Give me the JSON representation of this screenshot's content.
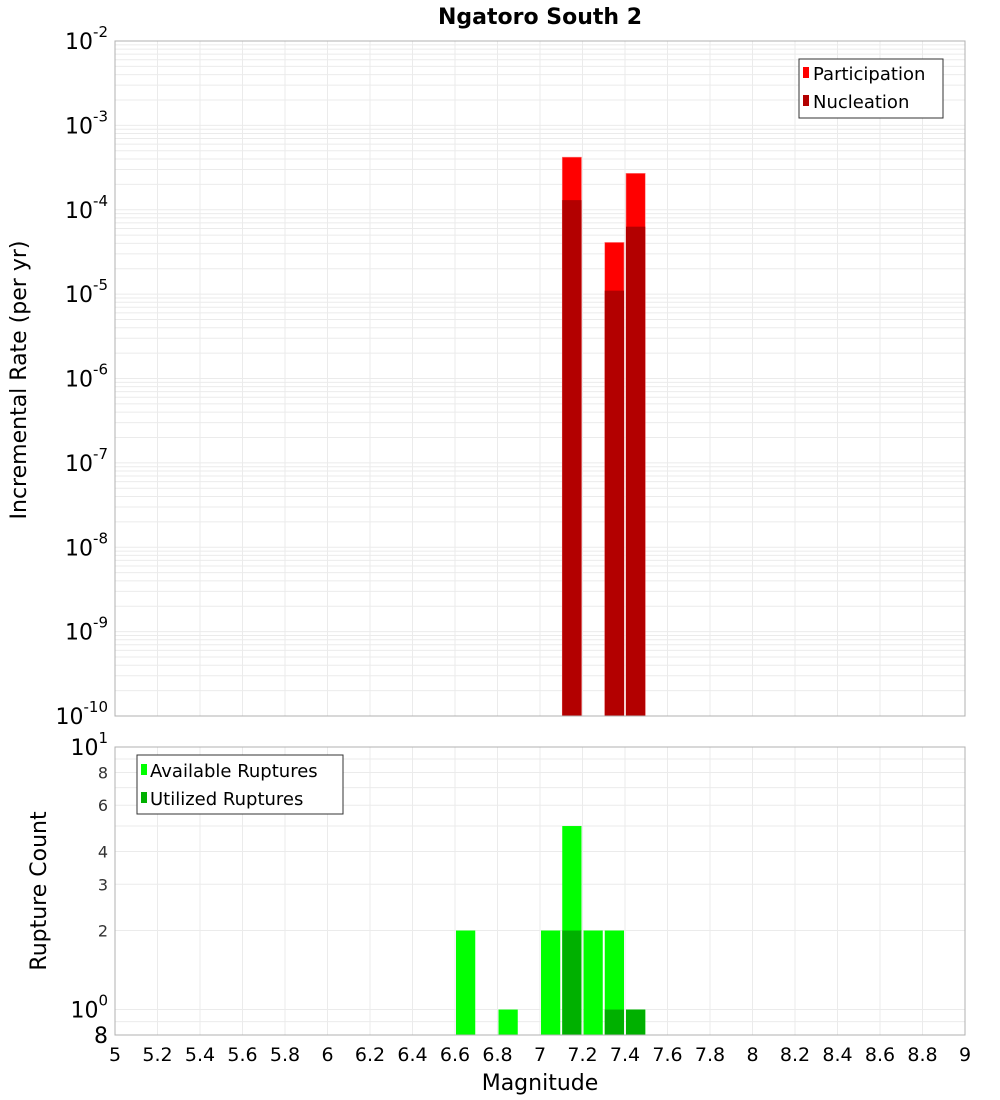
{
  "title": "Ngatoro South 2",
  "colors": {
    "participation": "#ff0000",
    "nucleation": "#b30000",
    "available": "#00ff00",
    "utilized": "#00b000",
    "grid": "#ebebeb",
    "frame": "#b0b0b0"
  },
  "top_panel": {
    "ylabel": "Incremental Rate (per yr)",
    "legend": [
      "Participation",
      "Nucleation"
    ]
  },
  "bottom_panel": {
    "ylabel": "Rupture Count",
    "legend": [
      "Available Ruptures",
      "Utilized Ruptures"
    ]
  },
  "xlabel": "Magnitude",
  "chart_data": [
    {
      "type": "bar",
      "title": "Ngatoro South 2",
      "xlabel": "Magnitude",
      "ylabel": "Incremental Rate (per yr)",
      "yscale": "log",
      "ylim": [
        1e-10,
        0.01
      ],
      "xlim": [
        5,
        9
      ],
      "x_ticks": [
        "5",
        "5.2",
        "5.4",
        "5.6",
        "5.8",
        "6",
        "6.2",
        "6.4",
        "6.6",
        "6.8",
        "7",
        "7.2",
        "7.4",
        "7.6",
        "7.8",
        "8",
        "8.2",
        "8.4",
        "8.6",
        "8.8",
        "9"
      ],
      "y_ticks": [
        "10^-2",
        "10^-3",
        "10^-4",
        "10^-5",
        "10^-6",
        "10^-7",
        "10^-8",
        "10^-9",
        "10^-10"
      ],
      "grid": true,
      "legend_position": "upper right",
      "x": [
        7.15,
        7.35,
        7.45
      ],
      "series": [
        {
          "name": "Participation",
          "values": [
            0.00042,
            4.1e-05,
            0.00027
          ]
        },
        {
          "name": "Nucleation",
          "values": [
            0.00013,
            1.1e-05,
            6.3e-05
          ]
        }
      ]
    },
    {
      "type": "bar",
      "xlabel": "Magnitude",
      "ylabel": "Rupture Count",
      "yscale": "log",
      "ylim": [
        0.8,
        10
      ],
      "xlim": [
        5,
        9
      ],
      "y_ticks": [
        "10^0",
        "2",
        "3",
        "4",
        "6",
        "8",
        "10^1"
      ],
      "y_bottom_label": "8",
      "grid": true,
      "legend_position": "upper left",
      "x": [
        6.65,
        6.85,
        7.05,
        7.15,
        7.25,
        7.35,
        7.45
      ],
      "series": [
        {
          "name": "Available Ruptures",
          "values": [
            2,
            1,
            2,
            5,
            2,
            2,
            1
          ]
        },
        {
          "name": "Utilized Ruptures",
          "values": [
            0,
            0,
            0,
            2,
            0,
            1,
            1
          ]
        }
      ]
    }
  ]
}
